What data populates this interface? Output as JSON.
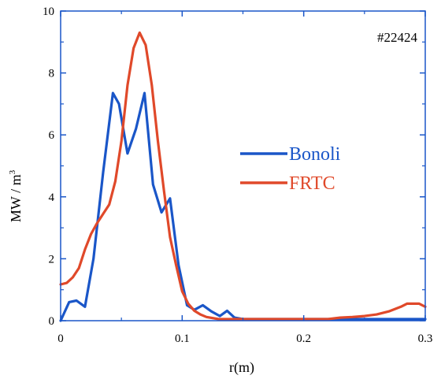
{
  "chart_data": {
    "type": "line",
    "xlabel": "r(m)",
    "ylabel": "MW / m",
    "ylabel_superscript": "3",
    "annotation": "#22424",
    "xlim": [
      0,
      0.3
    ],
    "ylim": [
      0,
      10
    ],
    "x_ticks": [
      0,
      0.1,
      0.2,
      0.3
    ],
    "x_tick_labels": [
      "0",
      "0.1",
      "0.2",
      "0.3"
    ],
    "y_ticks": [
      0,
      2,
      4,
      6,
      8,
      10
    ],
    "y_tick_labels": [
      "0",
      "2",
      "4",
      "6",
      "8",
      "10"
    ],
    "grid": false,
    "legend_position": "right-center",
    "series": [
      {
        "name": "Bonoli",
        "color": "#1a56c8",
        "points": [
          [
            0.0,
            0.0
          ],
          [
            0.007,
            0.6
          ],
          [
            0.013,
            0.65
          ],
          [
            0.02,
            0.45
          ],
          [
            0.027,
            2.0
          ],
          [
            0.035,
            4.8
          ],
          [
            0.043,
            7.35
          ],
          [
            0.048,
            7.0
          ],
          [
            0.055,
            5.4
          ],
          [
            0.062,
            6.2
          ],
          [
            0.069,
            7.35
          ],
          [
            0.076,
            4.4
          ],
          [
            0.083,
            3.5
          ],
          [
            0.09,
            3.95
          ],
          [
            0.097,
            1.8
          ],
          [
            0.104,
            0.5
          ],
          [
            0.11,
            0.35
          ],
          [
            0.117,
            0.5
          ],
          [
            0.124,
            0.3
          ],
          [
            0.131,
            0.15
          ],
          [
            0.137,
            0.32
          ],
          [
            0.143,
            0.1
          ],
          [
            0.15,
            0.05
          ],
          [
            0.2,
            0.05
          ],
          [
            0.25,
            0.05
          ],
          [
            0.3,
            0.05
          ]
        ]
      },
      {
        "name": "FRTC",
        "color": "#e0492a",
        "points": [
          [
            0.0,
            1.17
          ],
          [
            0.005,
            1.22
          ],
          [
            0.01,
            1.4
          ],
          [
            0.015,
            1.7
          ],
          [
            0.02,
            2.3
          ],
          [
            0.025,
            2.8
          ],
          [
            0.03,
            3.15
          ],
          [
            0.035,
            3.45
          ],
          [
            0.04,
            3.75
          ],
          [
            0.045,
            4.5
          ],
          [
            0.05,
            5.8
          ],
          [
            0.055,
            7.6
          ],
          [
            0.06,
            8.8
          ],
          [
            0.065,
            9.3
          ],
          [
            0.07,
            8.9
          ],
          [
            0.075,
            7.6
          ],
          [
            0.08,
            5.8
          ],
          [
            0.085,
            4.2
          ],
          [
            0.09,
            2.7
          ],
          [
            0.095,
            1.8
          ],
          [
            0.1,
            0.95
          ],
          [
            0.105,
            0.55
          ],
          [
            0.11,
            0.32
          ],
          [
            0.115,
            0.2
          ],
          [
            0.12,
            0.12
          ],
          [
            0.13,
            0.05
          ],
          [
            0.15,
            0.05
          ],
          [
            0.2,
            0.05
          ],
          [
            0.22,
            0.05
          ],
          [
            0.23,
            0.1
          ],
          [
            0.24,
            0.12
          ],
          [
            0.25,
            0.15
          ],
          [
            0.26,
            0.2
          ],
          [
            0.27,
            0.3
          ],
          [
            0.28,
            0.45
          ],
          [
            0.285,
            0.55
          ],
          [
            0.29,
            0.55
          ],
          [
            0.295,
            0.55
          ],
          [
            0.3,
            0.45
          ]
        ]
      }
    ]
  }
}
